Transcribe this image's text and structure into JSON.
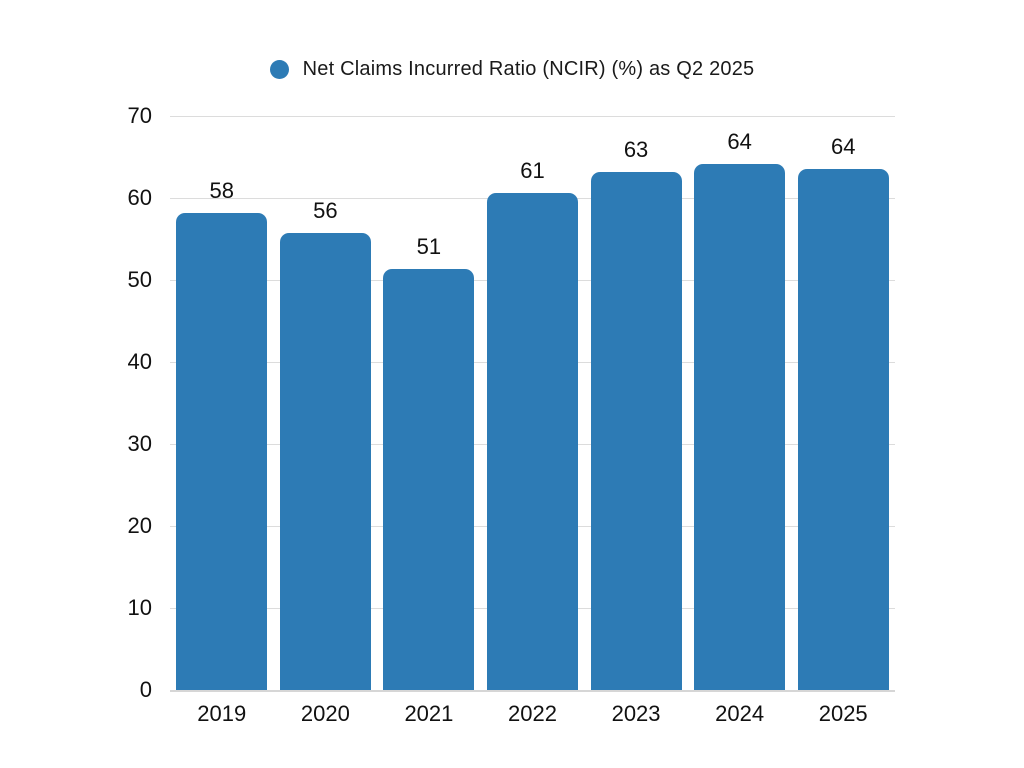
{
  "chart_data": {
    "type": "bar",
    "title": "Net Claims Incurred Ratio (NCIR) (%) as Q2 2025",
    "categories": [
      "2019",
      "2020",
      "2021",
      "2022",
      "2023",
      "2024",
      "2025"
    ],
    "values": [
      58,
      56,
      51,
      61,
      63,
      64,
      64
    ],
    "bar_heights_exact": [
      58.2,
      55.7,
      51.3,
      60.6,
      63.2,
      64.2,
      63.5
    ],
    "xlabel": "",
    "ylabel": "",
    "ylim": [
      0,
      70
    ],
    "yticks": [
      0,
      10,
      20,
      30,
      40,
      50,
      60,
      70
    ],
    "grid": true,
    "legend_position": "top-center",
    "legend_marker": "circle"
  },
  "colors": {
    "bar": "#2d7bb5",
    "gridline": "#dcdcdc",
    "zero_line": "#d6d6d6",
    "text": "#111111",
    "background": "#ffffff"
  }
}
